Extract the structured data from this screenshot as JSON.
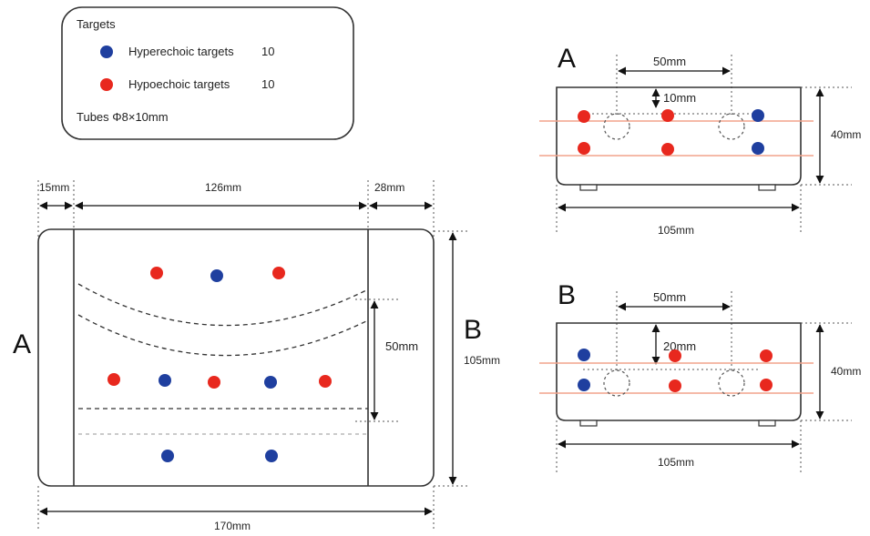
{
  "legend": {
    "title": "Targets",
    "hyper_label": "Hyperechoic targets",
    "hyper_count": "10",
    "hypo_label": "Hypoechoic targets",
    "hypo_count": "10",
    "tubes": "Tubes  Φ8×10mm"
  },
  "colors": {
    "hyper": "#1f3f9f",
    "hypo": "#e8281e",
    "outline": "#333333",
    "crossline": "#f2a38c"
  },
  "top_view": {
    "label_a": "A",
    "label_b": "B",
    "dim_left": "15mm",
    "dim_middle": "126mm",
    "dim_right": "28mm",
    "dim_height": "105mm",
    "dim_width": "170mm",
    "dim_band": "50mm"
  },
  "section_a": {
    "label": "A",
    "dim_spacing": "50mm",
    "dim_depth": "10mm",
    "dim_height": "40mm",
    "dim_width": "105mm"
  },
  "section_b": {
    "label": "B",
    "dim_spacing": "50mm",
    "dim_depth": "20mm",
    "dim_height": "40mm",
    "dim_width": "105mm"
  }
}
